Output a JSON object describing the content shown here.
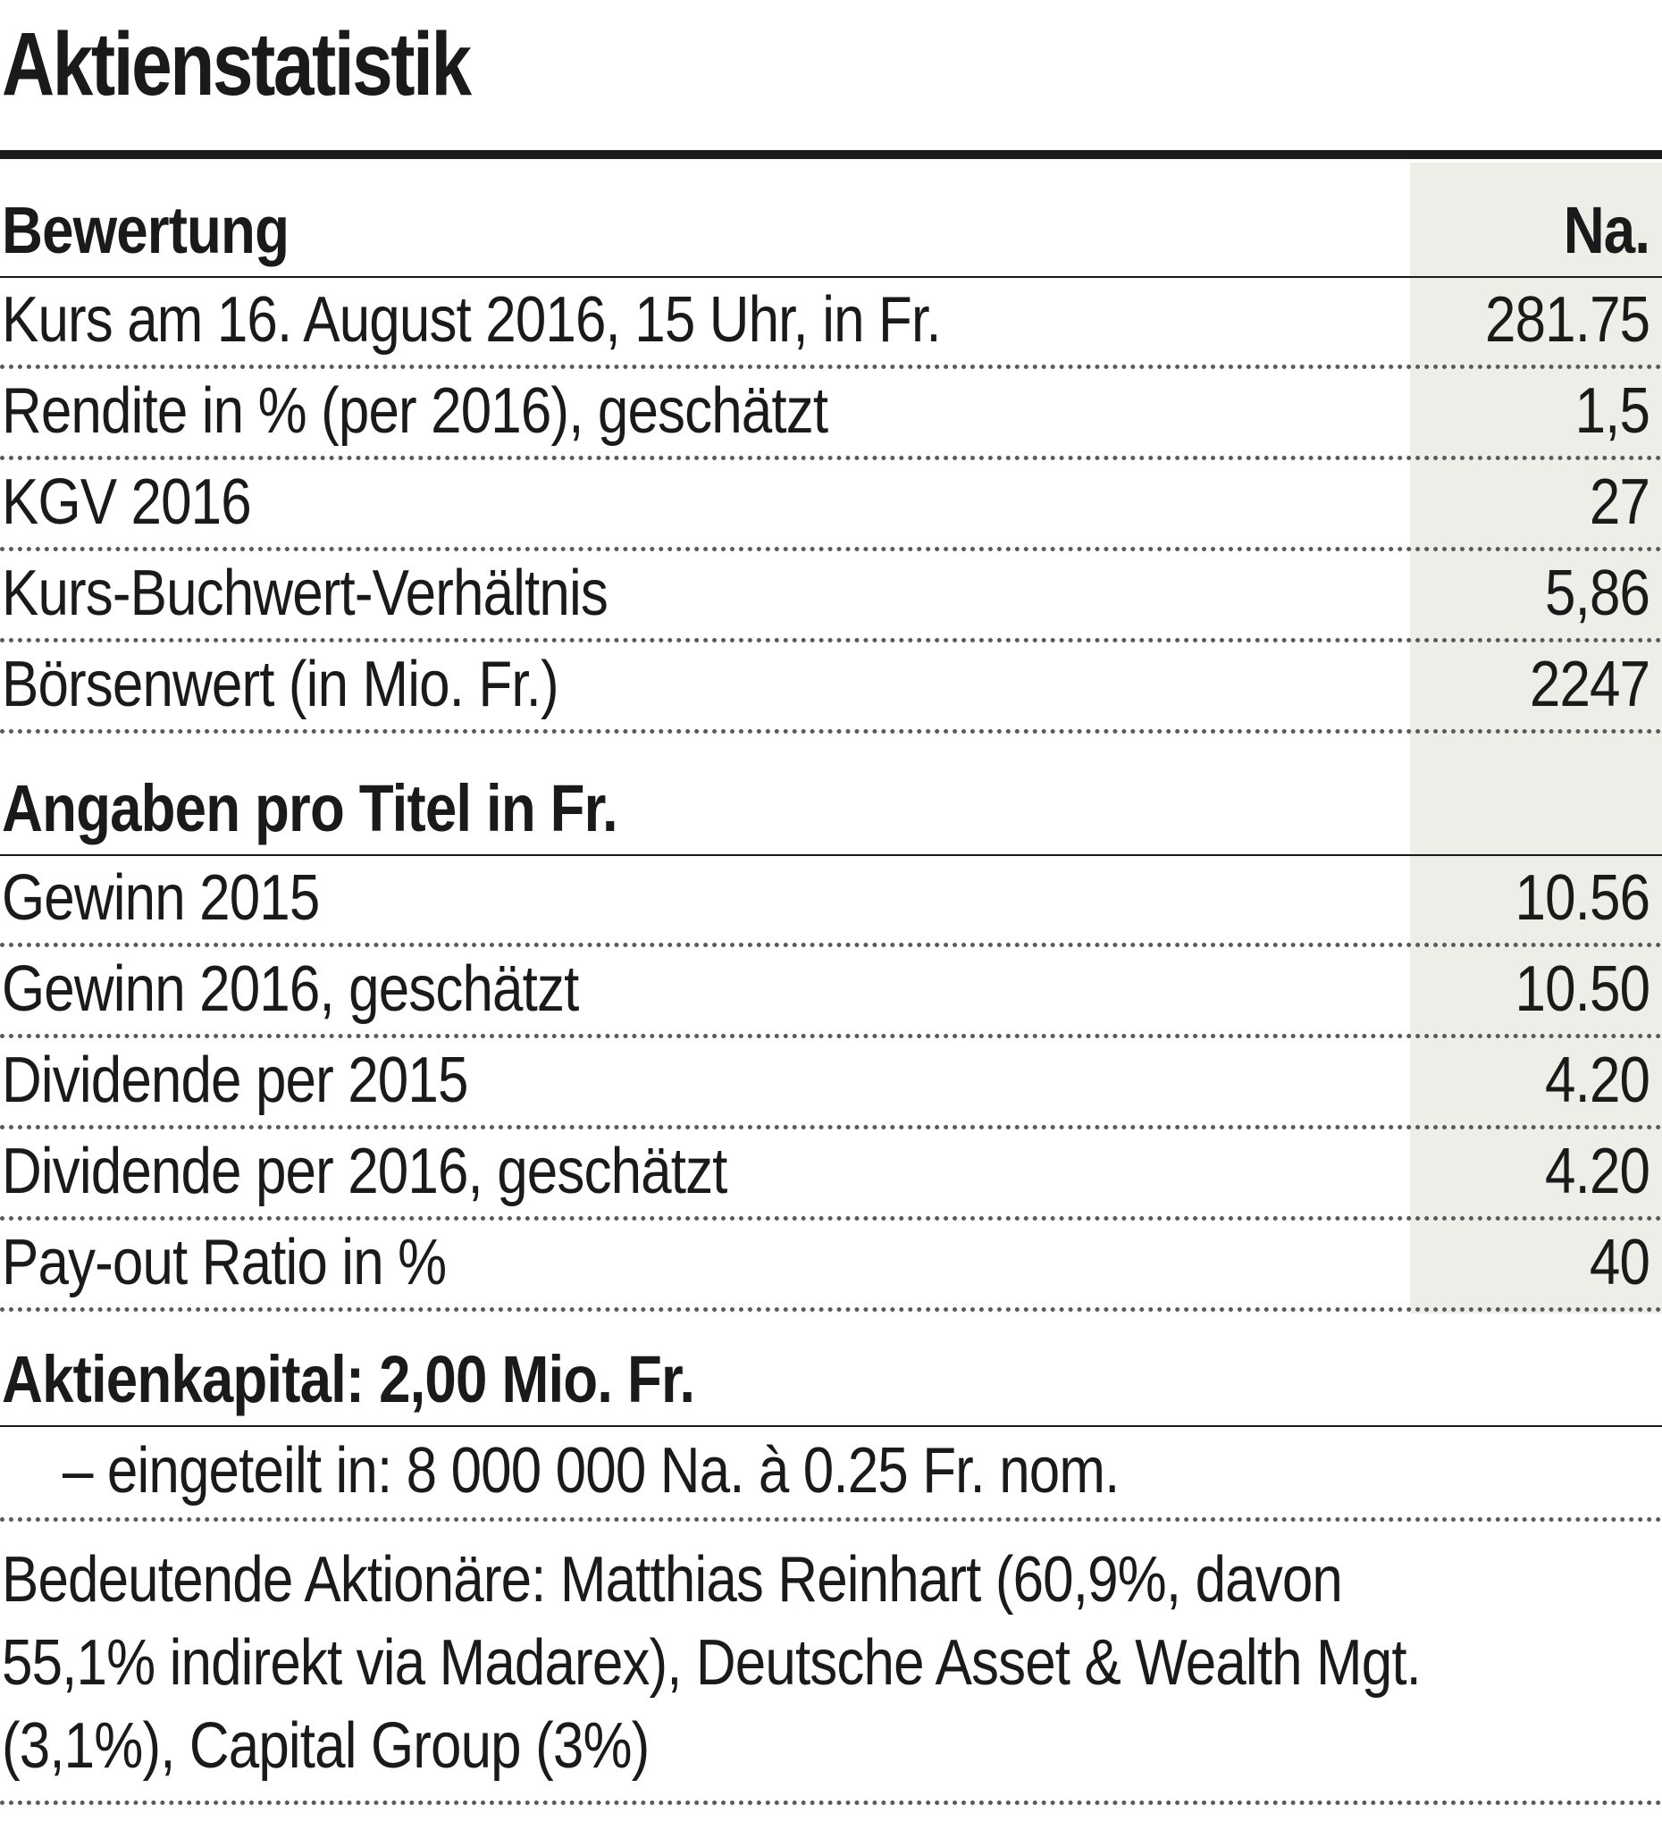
{
  "title": "Aktienstatistik",
  "valuation": {
    "heading": "Bewertung",
    "column": "Na.",
    "rows": [
      {
        "label": "Kurs am 16. August 2016, 15 Uhr, in Fr.",
        "value": "281.75"
      },
      {
        "label": "Rendite in % (per 2016), geschätzt",
        "value": "1,5"
      },
      {
        "label": "KGV 2016",
        "value": "27"
      },
      {
        "label": "Kurs-Buchwert-Verhältnis",
        "value": "5,86"
      },
      {
        "label": "Börsenwert (in Mio. Fr.)",
        "value": "2247"
      }
    ]
  },
  "per_share": {
    "heading": "Angaben pro Titel in Fr.",
    "rows": [
      {
        "label": "Gewinn 2015",
        "value": "10.56"
      },
      {
        "label": "Gewinn 2016, geschätzt",
        "value": "10.50"
      },
      {
        "label": "Dividende per 2015",
        "value": "4.20"
      },
      {
        "label": "Dividende per 2016, geschätzt",
        "value": "4.20"
      },
      {
        "label": "Pay-out Ratio in %",
        "value": "40"
      }
    ]
  },
  "capital": {
    "heading": "Aktienkapital: 2,00 Mio. Fr.",
    "split": "– eingeteilt in: 8 000 000 Na. à 0.25 Fr. nom."
  },
  "shareholders": {
    "lines": [
      "Bedeutende Aktionäre: Matthias Reinhart (60,9%, davon",
      "55,1% indirekt via Madarex), Deutsche Asset & Wealth Mgt.",
      "(3,1%), Capital Group (3%)"
    ]
  }
}
